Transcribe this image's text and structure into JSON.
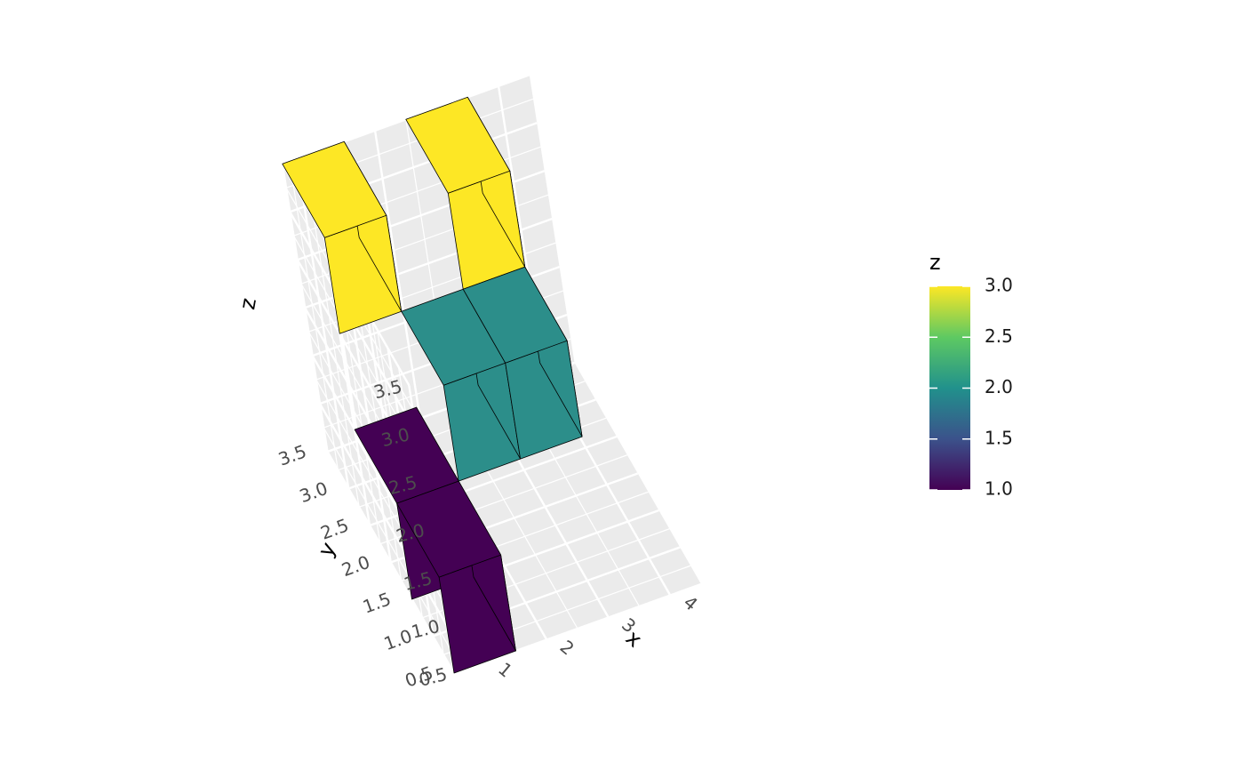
{
  "chart_data": {
    "type": "bar3d",
    "xlabel": "x",
    "ylabel": "y",
    "zlabel": "z",
    "x_ticks": [
      "1",
      "2",
      "3",
      "4"
    ],
    "y_ticks": [
      "0.5",
      "1.0",
      "1.5",
      "2.0",
      "2.5",
      "3.0",
      "3.5"
    ],
    "z_ticks": [
      "0.5",
      "1.0",
      "1.5",
      "2.0",
      "2.5",
      "3.0",
      "3.5"
    ],
    "xlim": [
      0.5,
      4.5
    ],
    "ylim": [
      0.5,
      3.5
    ],
    "zlim": [
      0.5,
      3.5
    ],
    "grid": true,
    "legend": {
      "title": "z",
      "position": "right",
      "range": [
        1.0,
        3.0
      ],
      "labels": [
        "3.0",
        "2.5",
        "2.0",
        "1.5",
        "1.0"
      ],
      "colors": [
        "#440154",
        "#3b528b",
        "#21918c",
        "#5ec962",
        "#fde725"
      ]
    },
    "cubes": [
      {
        "x": 1,
        "y": 1,
        "z": 1,
        "color": "#440154"
      },
      {
        "x": 1,
        "y": 2,
        "z": 1,
        "color": "#440154"
      },
      {
        "x": 2,
        "y": 2,
        "z": 2,
        "color": "#2c8e8a"
      },
      {
        "x": 1,
        "y": 3,
        "z": 3,
        "color": "#fde725"
      },
      {
        "x": 3,
        "y": 2,
        "z": 2,
        "color": "#2c8e8a"
      },
      {
        "x": 3,
        "y": 3,
        "z": 3,
        "color": "#fde725"
      }
    ]
  }
}
